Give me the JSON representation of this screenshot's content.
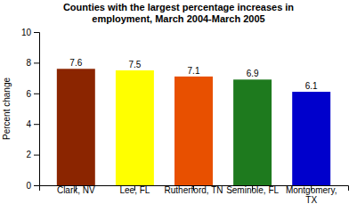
{
  "chart_data": {
    "type": "bar",
    "title": "Counties with the largest percentage increases in\nemployment, March 2004-March 2005",
    "categories": [
      "Clark, NV",
      "Lee, FL",
      "Rutherford, TN",
      "Seminole, FL",
      "Montgomery,\nTX"
    ],
    "values": [
      7.6,
      7.5,
      7.1,
      6.9,
      6.1
    ],
    "colors": [
      "#8B2500",
      "#FFFF00",
      "#E85000",
      "#1E7A1E",
      "#0000CC"
    ],
    "ylabel": "Percent change",
    "ylim": [
      0,
      10
    ],
    "yticks": [
      0,
      2,
      4,
      6,
      8,
      10
    ],
    "data_labels": true,
    "grid": false
  }
}
